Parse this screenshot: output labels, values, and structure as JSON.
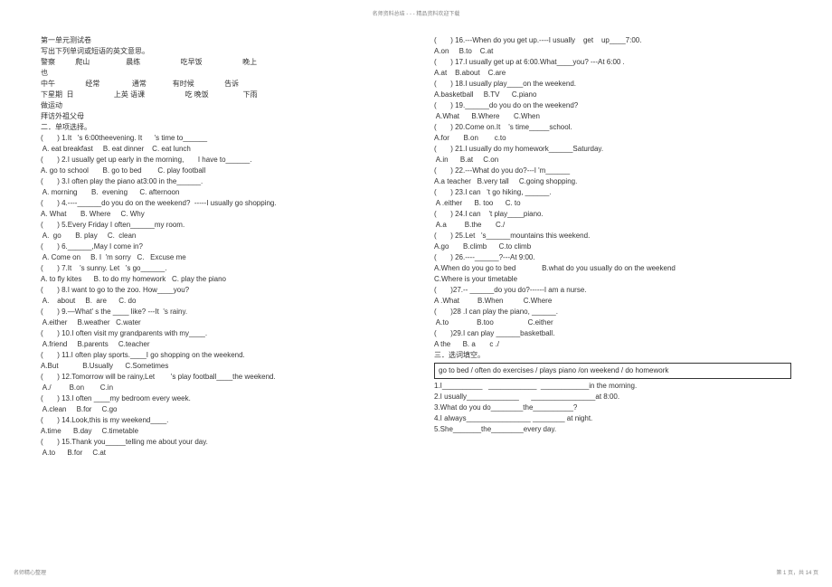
{
  "header": "名师资料总结 - - - 精品资料欢迎下载",
  "footer_left": "名师精心整理",
  "footer_right": "第 1 页，共 14 页",
  "left": {
    "title": "第一单元测试卷",
    "sub": "写出下列单词或短语的英文意思。",
    "vocab_rows": [
      "警察          爬山                  晨练                    吃早饭                    晚上",
      "也",
      "中午               经常                通常             有时候               告诉",
      "下星期  日                    上英 语课                    吃 晚饭                 下雨",
      "做运动",
      "拜访外祖父母"
    ],
    "section2": "二．单项选择。",
    "items": [
      "(       ) 1.It   's 6:00theevening. It      's time to______",
      " A. eat breakfast     B. eat dinner    C. eat lunch",
      "(       ) 2.I usually get up early in the morning,       I have to______.",
      "A. go to school       B. go to bed        C. play football",
      "(       ) 3.I often play the piano at3:00 in the______.",
      " A. morning       B.  evening      C. afternoon",
      "(       ) 4.----______do you do on the weekend?  -----I usually go shopping.",
      "A. What       B. Where     C. Why",
      "(       ) 5.Every Friday I often______my room.",
      " A.  go       B. play     C.  clean",
      "(       ) 6.______,May I come in?",
      " A. Come on     B. I  'm sorry   C.   Excuse me",
      "(       ) 7.It    's sunny. Let   's go______.",
      "A. to fly kites      B. to do my homework   C. play the piano",
      "(       ) 8.I want to go to the zoo. How____you?",
      " A.    about     B.  are      C. do",
      "(       ) 9.—What' s the ____ like? ---It  's rainy.",
      " A.either     B.weather   C.water",
      "(       ) 10.I often visit my grandparents with my____.",
      " A.friend     B.parents     C.teacher",
      "(       ) 11.I often play sports.____I go shopping on the weekend.",
      "A.But            B.Usually      C.Sometimes",
      "(       ) 12.Tomorrow will be rainy,Let        's play football____the weekend.",
      " A./         B.on        C.in",
      "(       ) 13.I often ____my bedroom every week.",
      " A.clean     B.for     C.go",
      "(       ) 14.Look,this is my weekend____.",
      "A.time      B.day     C.timetable",
      "(       ) 15.Thank you_____telling me about your day.",
      " A.to      B.for     C.at"
    ]
  },
  "right": {
    "items": [
      "(       ) 16.---When do you get up.----I usually    get    up____7:00.",
      "A.on     B.to    C.at",
      "(       ) 17.I usually get up at 6:00.What____you? ---At 6:00 .",
      "A.at    B.about    C.are",
      "(       ) 18.I usually play____on the weekend.",
      "A.basketball     B.TV      C.piano",
      "(       ) 19.______do you do on the weekend?",
      " A.What      B.Where       C.When",
      "(       ) 20.Come on.It    's time_____school.",
      "A.for       B.on        c.to",
      "(       ) 21.I usually do my homework______Saturday.",
      " A.in      B.at     C.on",
      "(       ) 22.---What do you do?---I 'm______",
      "A.a teacher   B.very tall     C.going shopping.",
      "(       ) 23.I can   't go hiking, ______.",
      " A .either      B. too      C. to",
      "(       ) 24.I can    't play____piano.",
      " A.a         B.the       C./",
      "(       ) 25.Let   's______mountains this weekend.",
      "A.go       B.climb      C.to climb",
      "(       ) 26.----______?---At 9:00.",
      "A.When do you go to bed             B.what do you usually do on the weekend",
      "C.Where is your timetable",
      "(       )27.-- ______do you do?------I am a nurse.",
      "A .What         B.When          C.Where",
      "(       )28 .I can play the piano, ______.",
      " A.to              B.too                 C.either",
      "(       )29.I can play ______basketball.",
      "A the      B. a       c ./"
    ],
    "section3": "三．选词填空。",
    "box": "go   to   bed  /  often   do   exercises /  plays    piano   /on   weekend /  do homework",
    "fill": [
      "1.I__________   ____________  ____________in the morning.",
      "2.I usually_____________      ________________at 8:00.",
      "3.What do you do________the__________?",
      "4.I always________________ ________ at night.",
      "5.She_______the________every day."
    ]
  }
}
